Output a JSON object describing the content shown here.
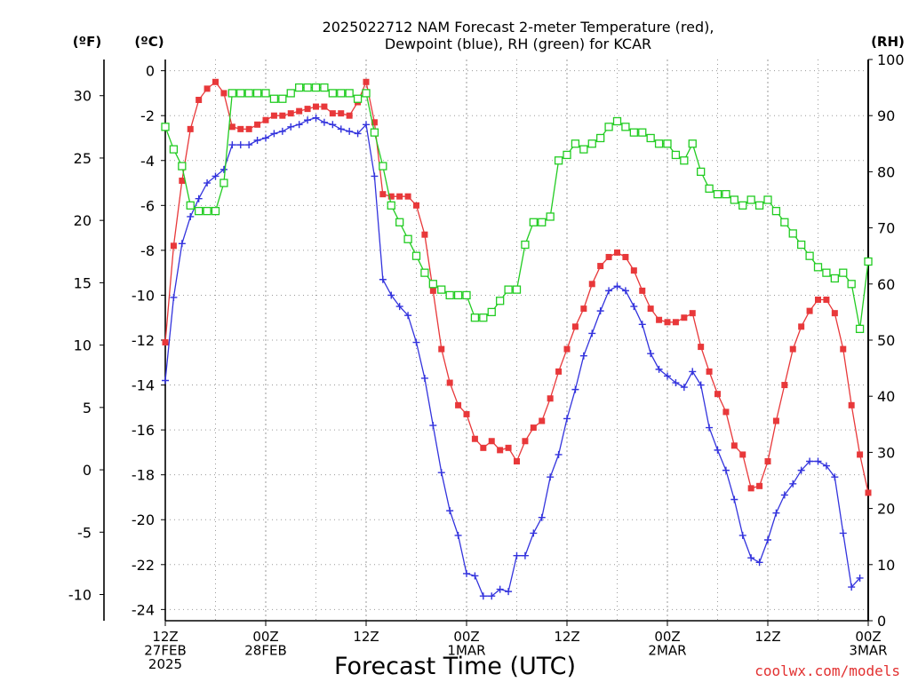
{
  "chart_data": {
    "type": "line",
    "title": "2025022712 NAM Forecast 2-meter Temperature (red),",
    "subtitle": "Dewpoint (blue), RH (green) for KCAR",
    "xlabel": "Forecast Time (UTC)",
    "ylabel_left_outer": "(ºF)",
    "ylabel_left": "(ºC)",
    "ylabel_right": "(RH)",
    "watermark": "coolwx.com/models",
    "x_range_hours": [
      0,
      84
    ],
    "ylim_c": [
      -24.5,
      0.5
    ],
    "ylim_rh": [
      0,
      100
    ],
    "grid": true,
    "x_ticks": [
      {
        "hour": 0,
        "lines": [
          "12Z",
          "27FEB",
          "2025"
        ]
      },
      {
        "hour": 12,
        "lines": [
          "00Z",
          "28FEB"
        ]
      },
      {
        "hour": 24,
        "lines": [
          "12Z"
        ]
      },
      {
        "hour": 36,
        "lines": [
          "00Z",
          "1MAR"
        ]
      },
      {
        "hour": 48,
        "lines": [
          "12Z"
        ]
      },
      {
        "hour": 60,
        "lines": [
          "00Z",
          "2MAR"
        ]
      },
      {
        "hour": 72,
        "lines": [
          "12Z"
        ]
      },
      {
        "hour": 84,
        "lines": [
          "00Z",
          "3MAR"
        ]
      }
    ],
    "y_ticks_c": [
      "0",
      "-2",
      "-4",
      "-6",
      "-8",
      "-10",
      "-12",
      "-14",
      "-16",
      "-18",
      "-20",
      "-22",
      "-24"
    ],
    "y_ticks_f": [
      "30",
      "25",
      "20",
      "15",
      "10",
      "5",
      "0",
      "-5",
      "-10"
    ],
    "y_ticks_rh": [
      "100",
      "90",
      "80",
      "70",
      "60",
      "50",
      "40",
      "30",
      "20",
      "10",
      "0"
    ],
    "series": [
      {
        "name": "2-meter Temperature",
        "unit": "C",
        "color": "#e8383a",
        "marker": "filled-square",
        "values": [
          [
            0,
            -12.1
          ],
          [
            1,
            -7.8
          ],
          [
            2,
            -4.9
          ],
          [
            3,
            -2.6
          ],
          [
            4,
            -1.3
          ],
          [
            5,
            -0.8
          ],
          [
            6,
            -0.5
          ],
          [
            7,
            -1.0
          ],
          [
            8,
            -2.5
          ],
          [
            9,
            -2.6
          ],
          [
            10,
            -2.6
          ],
          [
            11,
            -2.4
          ],
          [
            12,
            -2.2
          ],
          [
            13,
            -2.0
          ],
          [
            14,
            -2.0
          ],
          [
            15,
            -1.9
          ],
          [
            16,
            -1.8
          ],
          [
            17,
            -1.7
          ],
          [
            18,
            -1.6
          ],
          [
            19,
            -1.6
          ],
          [
            20,
            -1.9
          ],
          [
            21,
            -1.9
          ],
          [
            22,
            -2.0
          ],
          [
            23,
            -1.4
          ],
          [
            24,
            -0.5
          ],
          [
            25,
            -2.3
          ],
          [
            26,
            -5.5
          ],
          [
            27,
            -5.6
          ],
          [
            28,
            -5.6
          ],
          [
            29,
            -5.6
          ],
          [
            30,
            -6.0
          ],
          [
            31,
            -7.3
          ],
          [
            32,
            -9.8
          ],
          [
            33,
            -12.4
          ],
          [
            34,
            -13.9
          ],
          [
            35,
            -14.9
          ],
          [
            36,
            -15.3
          ],
          [
            37,
            -16.4
          ],
          [
            38,
            -16.8
          ],
          [
            39,
            -16.5
          ],
          [
            40,
            -16.9
          ],
          [
            41,
            -16.8
          ],
          [
            42,
            -17.4
          ],
          [
            43,
            -16.5
          ],
          [
            44,
            -15.9
          ],
          [
            45,
            -15.6
          ],
          [
            46,
            -14.6
          ],
          [
            47,
            -13.4
          ],
          [
            48,
            -12.4
          ],
          [
            49,
            -11.4
          ],
          [
            50,
            -10.6
          ],
          [
            51,
            -9.5
          ],
          [
            52,
            -8.7
          ],
          [
            53,
            -8.3
          ],
          [
            54,
            -8.1
          ],
          [
            55,
            -8.3
          ],
          [
            56,
            -8.9
          ],
          [
            57,
            -9.8
          ],
          [
            58,
            -10.6
          ],
          [
            59,
            -11.1
          ],
          [
            60,
            -11.2
          ],
          [
            61,
            -11.2
          ],
          [
            62,
            -11.0
          ],
          [
            63,
            -10.8
          ],
          [
            64,
            -12.3
          ],
          [
            65,
            -13.4
          ],
          [
            66,
            -14.4
          ],
          [
            67,
            -15.2
          ],
          [
            68,
            -16.7
          ],
          [
            69,
            -17.1
          ],
          [
            70,
            -18.6
          ],
          [
            71,
            -18.5
          ],
          [
            72,
            -17.4
          ],
          [
            73,
            -15.6
          ],
          [
            74,
            -14.0
          ],
          [
            75,
            -12.4
          ],
          [
            76,
            -11.4
          ],
          [
            77,
            -10.7
          ],
          [
            78,
            -10.2
          ],
          [
            79,
            -10.2
          ],
          [
            80,
            -10.8
          ],
          [
            81,
            -12.4
          ],
          [
            82,
            -14.9
          ],
          [
            83,
            -17.1
          ],
          [
            84,
            -18.8
          ]
        ]
      },
      {
        "name": "Dewpoint",
        "unit": "C",
        "color": "#3333dd",
        "marker": "plus",
        "values": [
          [
            0,
            -13.8
          ],
          [
            1,
            -10.1
          ],
          [
            2,
            -7.7
          ],
          [
            3,
            -6.5
          ],
          [
            4,
            -5.7
          ],
          [
            5,
            -5.0
          ],
          [
            6,
            -4.7
          ],
          [
            7,
            -4.4
          ],
          [
            8,
            -3.3
          ],
          [
            9,
            -3.3
          ],
          [
            10,
            -3.3
          ],
          [
            11,
            -3.1
          ],
          [
            12,
            -3.0
          ],
          [
            13,
            -2.8
          ],
          [
            14,
            -2.7
          ],
          [
            15,
            -2.5
          ],
          [
            16,
            -2.4
          ],
          [
            17,
            -2.2
          ],
          [
            18,
            -2.1
          ],
          [
            19,
            -2.3
          ],
          [
            20,
            -2.4
          ],
          [
            21,
            -2.6
          ],
          [
            22,
            -2.7
          ],
          [
            23,
            -2.8
          ],
          [
            24,
            -2.4
          ],
          [
            25,
            -4.7
          ],
          [
            26,
            -9.3
          ],
          [
            27,
            -10.0
          ],
          [
            28,
            -10.5
          ],
          [
            29,
            -10.9
          ],
          [
            30,
            -12.1
          ],
          [
            31,
            -13.7
          ],
          [
            32,
            -15.8
          ],
          [
            33,
            -17.9
          ],
          [
            34,
            -19.6
          ],
          [
            35,
            -20.7
          ],
          [
            36,
            -22.4
          ],
          [
            37,
            -22.5
          ],
          [
            38,
            -23.4
          ],
          [
            39,
            -23.4
          ],
          [
            40,
            -23.1
          ],
          [
            41,
            -23.2
          ],
          [
            42,
            -21.6
          ],
          [
            43,
            -21.6
          ],
          [
            44,
            -20.6
          ],
          [
            45,
            -19.9
          ],
          [
            46,
            -18.1
          ],
          [
            47,
            -17.1
          ],
          [
            48,
            -15.5
          ],
          [
            49,
            -14.2
          ],
          [
            50,
            -12.7
          ],
          [
            51,
            -11.7
          ],
          [
            52,
            -10.7
          ],
          [
            53,
            -9.8
          ],
          [
            54,
            -9.6
          ],
          [
            55,
            -9.8
          ],
          [
            56,
            -10.5
          ],
          [
            57,
            -11.3
          ],
          [
            58,
            -12.6
          ],
          [
            59,
            -13.3
          ],
          [
            60,
            -13.6
          ],
          [
            61,
            -13.9
          ],
          [
            62,
            -14.1
          ],
          [
            63,
            -13.4
          ],
          [
            64,
            -14.0
          ],
          [
            65,
            -15.9
          ],
          [
            66,
            -16.9
          ],
          [
            67,
            -17.8
          ],
          [
            68,
            -19.1
          ],
          [
            69,
            -20.7
          ],
          [
            70,
            -21.7
          ],
          [
            71,
            -21.9
          ],
          [
            72,
            -20.9
          ],
          [
            73,
            -19.7
          ],
          [
            74,
            -18.9
          ],
          [
            75,
            -18.4
          ],
          [
            76,
            -17.8
          ],
          [
            77,
            -17.4
          ],
          [
            78,
            -17.4
          ],
          [
            79,
            -17.6
          ],
          [
            80,
            -18.1
          ],
          [
            81,
            -20.6
          ],
          [
            82,
            -23.0
          ],
          [
            83,
            -22.6
          ]
        ]
      },
      {
        "name": "RH",
        "unit": "%",
        "color": "#22cc22",
        "marker": "open-square",
        "values": [
          [
            0,
            88
          ],
          [
            1,
            84
          ],
          [
            2,
            81
          ],
          [
            3,
            74
          ],
          [
            4,
            73
          ],
          [
            5,
            73
          ],
          [
            6,
            73
          ],
          [
            7,
            78
          ],
          [
            8,
            94
          ],
          [
            9,
            94
          ],
          [
            10,
            94
          ],
          [
            11,
            94
          ],
          [
            12,
            94
          ],
          [
            13,
            93
          ],
          [
            14,
            93
          ],
          [
            15,
            94
          ],
          [
            16,
            95
          ],
          [
            17,
            95
          ],
          [
            18,
            95
          ],
          [
            19,
            95
          ],
          [
            20,
            94
          ],
          [
            21,
            94
          ],
          [
            22,
            94
          ],
          [
            23,
            93
          ],
          [
            24,
            94
          ],
          [
            25,
            87
          ],
          [
            26,
            81
          ],
          [
            27,
            74
          ],
          [
            28,
            71
          ],
          [
            29,
            68
          ],
          [
            30,
            65
          ],
          [
            31,
            62
          ],
          [
            32,
            60
          ],
          [
            33,
            59
          ],
          [
            34,
            58
          ],
          [
            35,
            58
          ],
          [
            36,
            58
          ],
          [
            37,
            54
          ],
          [
            38,
            54
          ],
          [
            39,
            55
          ],
          [
            40,
            57
          ],
          [
            41,
            59
          ],
          [
            42,
            59
          ],
          [
            43,
            67
          ],
          [
            44,
            71
          ],
          [
            45,
            71
          ],
          [
            46,
            72
          ],
          [
            47,
            82
          ],
          [
            48,
            83
          ],
          [
            49,
            85
          ],
          [
            50,
            84
          ],
          [
            51,
            85
          ],
          [
            52,
            86
          ],
          [
            53,
            88
          ],
          [
            54,
            89
          ],
          [
            55,
            88
          ],
          [
            56,
            87
          ],
          [
            57,
            87
          ],
          [
            58,
            86
          ],
          [
            59,
            85
          ],
          [
            60,
            85
          ],
          [
            61,
            83
          ],
          [
            62,
            82
          ],
          [
            63,
            85
          ],
          [
            64,
            80
          ],
          [
            65,
            77
          ],
          [
            66,
            76
          ],
          [
            67,
            76
          ],
          [
            68,
            75
          ],
          [
            69,
            74
          ],
          [
            70,
            75
          ],
          [
            71,
            74
          ],
          [
            72,
            75
          ],
          [
            73,
            73
          ],
          [
            74,
            71
          ],
          [
            75,
            69
          ],
          [
            76,
            67
          ],
          [
            77,
            65
          ],
          [
            78,
            63
          ],
          [
            79,
            62
          ],
          [
            80,
            61
          ],
          [
            81,
            62
          ],
          [
            82,
            60
          ],
          [
            83,
            52
          ],
          [
            84,
            64
          ]
        ]
      }
    ]
  }
}
